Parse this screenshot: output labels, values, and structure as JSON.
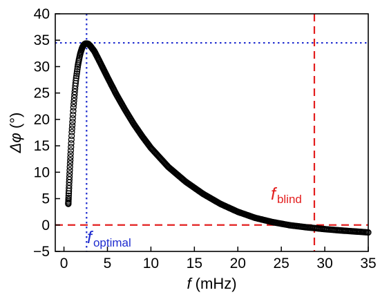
{
  "chart_data": {
    "type": "scatter",
    "title": "",
    "xlabel": {
      "symbol": "f",
      "unit": " (mHz)"
    },
    "ylabel": {
      "symbol": "Δφ",
      "unit": " (°)"
    },
    "xlim": [
      -1,
      35
    ],
    "ylim": [
      -5,
      40
    ],
    "xticks": [
      0,
      5,
      10,
      15,
      20,
      25,
      30,
      35
    ],
    "yticks": [
      -5,
      0,
      5,
      10,
      15,
      20,
      25,
      30,
      35,
      40
    ],
    "grid": false,
    "series": [
      {
        "marker": "open-circle",
        "color": "#000000",
        "points": [
          [
            0.5,
            4.0
          ],
          [
            0.6,
            8.0
          ],
          [
            0.7,
            11.5
          ],
          [
            0.8,
            14.5
          ],
          [
            0.9,
            17.5
          ],
          [
            1.0,
            20.0
          ],
          [
            1.1,
            22.5
          ],
          [
            1.2,
            24.5
          ],
          [
            1.3,
            26.3
          ],
          [
            1.4,
            27.8
          ],
          [
            1.5,
            29.0
          ],
          [
            1.6,
            30.2
          ],
          [
            1.7,
            31.1
          ],
          [
            1.8,
            31.9
          ],
          [
            1.9,
            32.6
          ],
          [
            2.0,
            33.1
          ],
          [
            2.1,
            33.6
          ],
          [
            2.2,
            33.9
          ],
          [
            2.3,
            34.15
          ],
          [
            2.4,
            34.3
          ],
          [
            2.5,
            34.37
          ],
          [
            2.6,
            34.38
          ],
          [
            2.8,
            34.3
          ],
          [
            3.0,
            34.0
          ],
          [
            3.5,
            32.9
          ],
          [
            4.0,
            31.3
          ],
          [
            5.0,
            28.0
          ],
          [
            6.0,
            24.8
          ],
          [
            7.0,
            21.9
          ],
          [
            8.0,
            19.2
          ],
          [
            9.0,
            16.8
          ],
          [
            10.0,
            14.6
          ],
          [
            12.0,
            11.0
          ],
          [
            14.0,
            8.2
          ],
          [
            16.0,
            5.9
          ],
          [
            18.0,
            4.0
          ],
          [
            20.0,
            2.5
          ],
          [
            22.0,
            1.35
          ],
          [
            24.0,
            0.55
          ],
          [
            26.0,
            -0.05
          ],
          [
            27.0,
            -0.25
          ],
          [
            28.0,
            -0.45
          ],
          [
            29.0,
            -0.6
          ],
          [
            30.0,
            -0.78
          ],
          [
            32.0,
            -1.05
          ],
          [
            34.0,
            -1.28
          ],
          [
            35.0,
            -1.4
          ]
        ]
      }
    ],
    "annotations": [
      {
        "name": "optimal-horizontal",
        "orientation": "horizontal",
        "value": 34.5,
        "style": "dotted",
        "color": "#1f2ccf"
      },
      {
        "name": "optimal-vertical",
        "orientation": "vertical",
        "value": 2.6,
        "style": "dotted",
        "color": "#1f2ccf"
      },
      {
        "name": "zero-line",
        "orientation": "horizontal",
        "value": 0,
        "style": "dashed",
        "color": "#e31e1e"
      },
      {
        "name": "blind-vertical",
        "orientation": "vertical",
        "value": 28.8,
        "style": "dashed",
        "color": "#e31e1e"
      }
    ],
    "labels": {
      "optimal": {
        "symbol": "f",
        "subscript": "optimal",
        "color": "#1f2ccf"
      },
      "blind": {
        "symbol": "f",
        "subscript": "blind",
        "color": "#e31e1e"
      }
    }
  }
}
